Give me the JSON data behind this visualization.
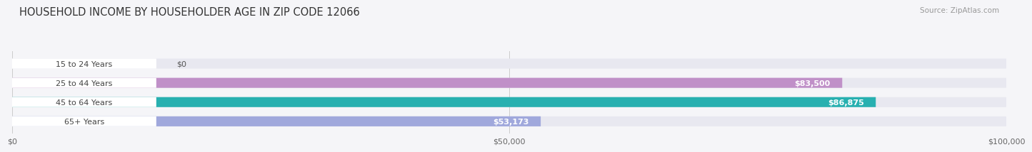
{
  "title": "HOUSEHOLD INCOME BY HOUSEHOLDER AGE IN ZIP CODE 12066",
  "source": "Source: ZipAtlas.com",
  "categories": [
    "15 to 24 Years",
    "25 to 44 Years",
    "45 to 64 Years",
    "65+ Years"
  ],
  "values": [
    0,
    83500,
    86875,
    53173
  ],
  "bar_colors": [
    "#a8c4e0",
    "#c090c8",
    "#28b0b0",
    "#a0a8dc"
  ],
  "bar_bg_color": "#e8e8f0",
  "value_labels": [
    "$0",
    "$83,500",
    "$86,875",
    "$53,173"
  ],
  "xlim": [
    0,
    100000
  ],
  "xticks": [
    0,
    50000,
    100000
  ],
  "xtick_labels": [
    "$0",
    "$50,000",
    "$100,000"
  ],
  "fig_bg_color": "#f5f5f8",
  "title_fontsize": 10.5,
  "source_fontsize": 7.5,
  "bar_height": 0.52,
  "label_bg_color": "#ffffff"
}
